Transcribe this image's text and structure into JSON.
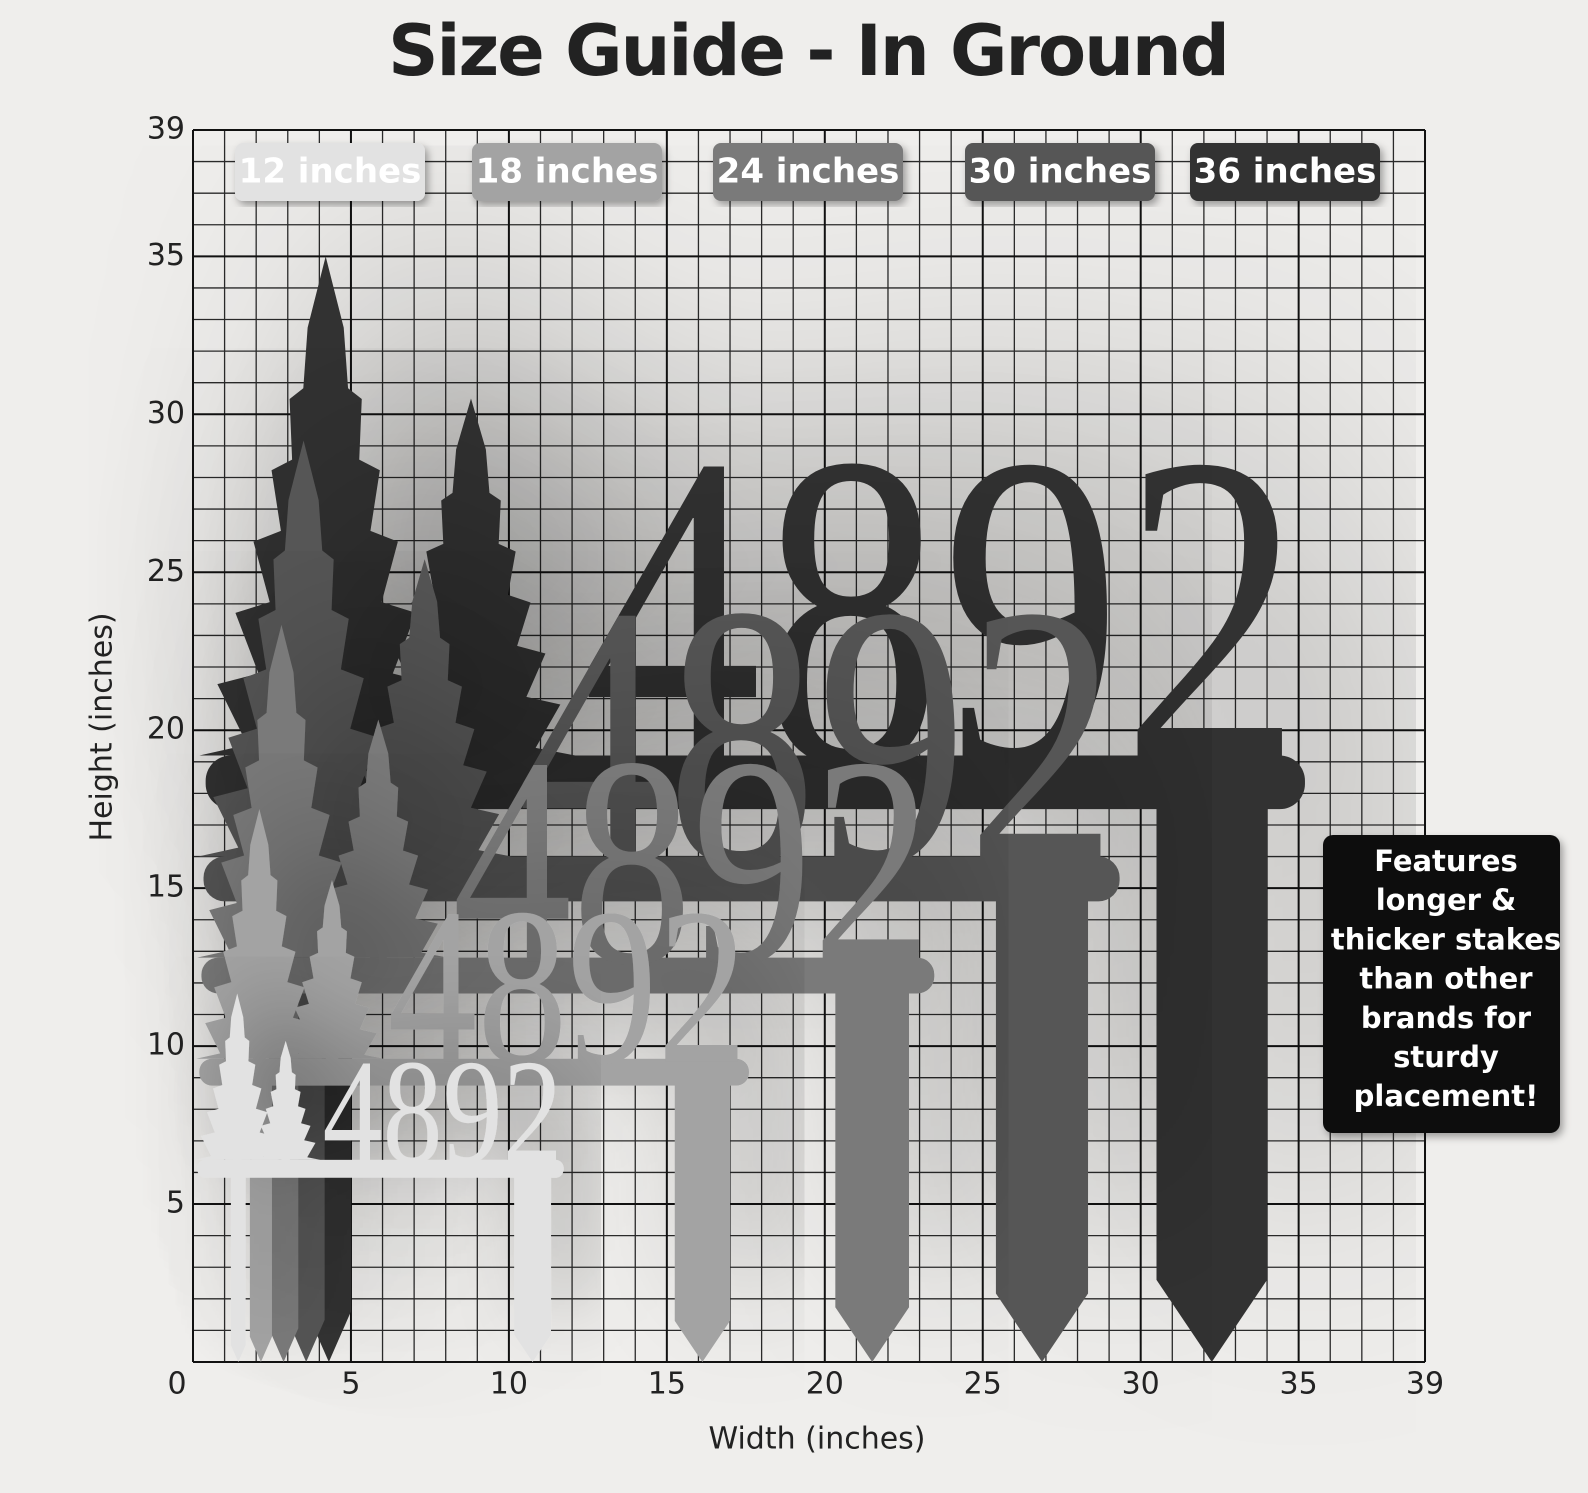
{
  "title": "Size Guide - In Ground",
  "x_axis": {
    "label": "Width (inches)",
    "ticks": [
      0,
      5,
      10,
      15,
      20,
      25,
      30,
      35,
      39
    ]
  },
  "y_axis": {
    "label": "Height (inches)",
    "ticks": [
      0,
      5,
      10,
      15,
      20,
      25,
      30,
      35,
      39
    ]
  },
  "sizes": [
    "12 inches",
    "18 inches",
    "24 inches",
    "30 inches",
    "36 inches"
  ],
  "sign_text": "4892",
  "callout": [
    "Features",
    "longer &",
    "thicker stakes",
    "than other",
    "brands for",
    "sturdy",
    "placement!"
  ]
}
